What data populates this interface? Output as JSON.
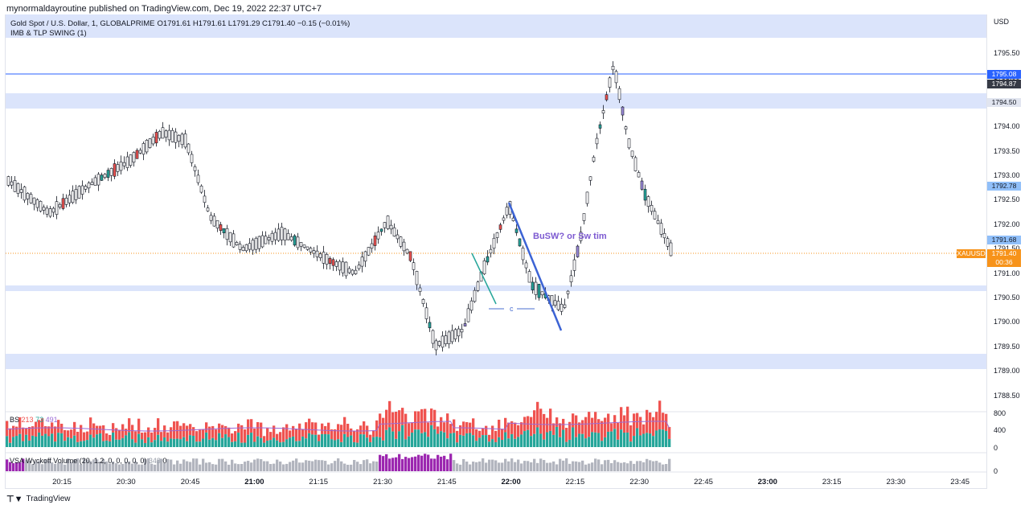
{
  "header": {
    "publisher": "mynormaldayroutine published on TradingView.com, Dec 19, 2022 22:37 UTC+7"
  },
  "legend": {
    "symbol": "Gold Spot / U.S. Dollar, 1, GLOBALPRIME",
    "ohlc": "O1791.61  H1791.61  L1791.29  C1791.40  −0.15 (−0.01%)",
    "indicator": "IMB & TLP SWING (1)"
  },
  "price_axis": {
    "currency": "USD",
    "ticks": [
      "1795.50",
      "1795.00",
      "1794.50",
      "1794.00",
      "1793.50",
      "1793.00",
      "1792.50",
      "1792.00",
      "1791.50",
      "1791.00",
      "1790.50",
      "1790.00",
      "1789.50",
      "1789.00",
      "1788.50"
    ],
    "labels": {
      "blue": "1795.08",
      "dark": "1794.87",
      "zone_upper": "1794.50",
      "light_blue": "1792.78",
      "light_blue_2": "1791.68",
      "symbol_tag": "XAUUSD",
      "last_price": "1791.40",
      "countdown": "00:36"
    },
    "colors": {
      "blue": "#2962ff",
      "dark": "#363a45",
      "light_blue": "#90bff9",
      "orange": "#f7931a"
    }
  },
  "time_axis": {
    "ticks": [
      "20:15",
      "20:30",
      "20:45",
      "21:00",
      "21:15",
      "21:30",
      "21:45",
      "22:00",
      "22:15",
      "22:30",
      "22:45",
      "23:00",
      "23:15",
      "23:30",
      "23:45"
    ],
    "bold": [
      "21:00",
      "22:00",
      "23:00"
    ]
  },
  "annotations": {
    "text": "BuSW? or Sw tim",
    "c_label": "c"
  },
  "indicators": {
    "bs": {
      "name": "BS",
      "v1": "213",
      "v2": "73",
      "v3": "491",
      "axis": [
        "800",
        "400",
        "0"
      ]
    },
    "vsa": {
      "name": "VSA Wyckoff Volume (20, 1.2, 0, 0, 0, 0, 0)",
      "value": "343",
      "tail": "0",
      "axis": [
        "0"
      ]
    }
  },
  "footer": {
    "brand": "TradingView"
  },
  "colors": {
    "up": "#26a69a",
    "down": "#ef5350",
    "zone": "#dbe4fb",
    "purple": "#9c27b0"
  }
}
